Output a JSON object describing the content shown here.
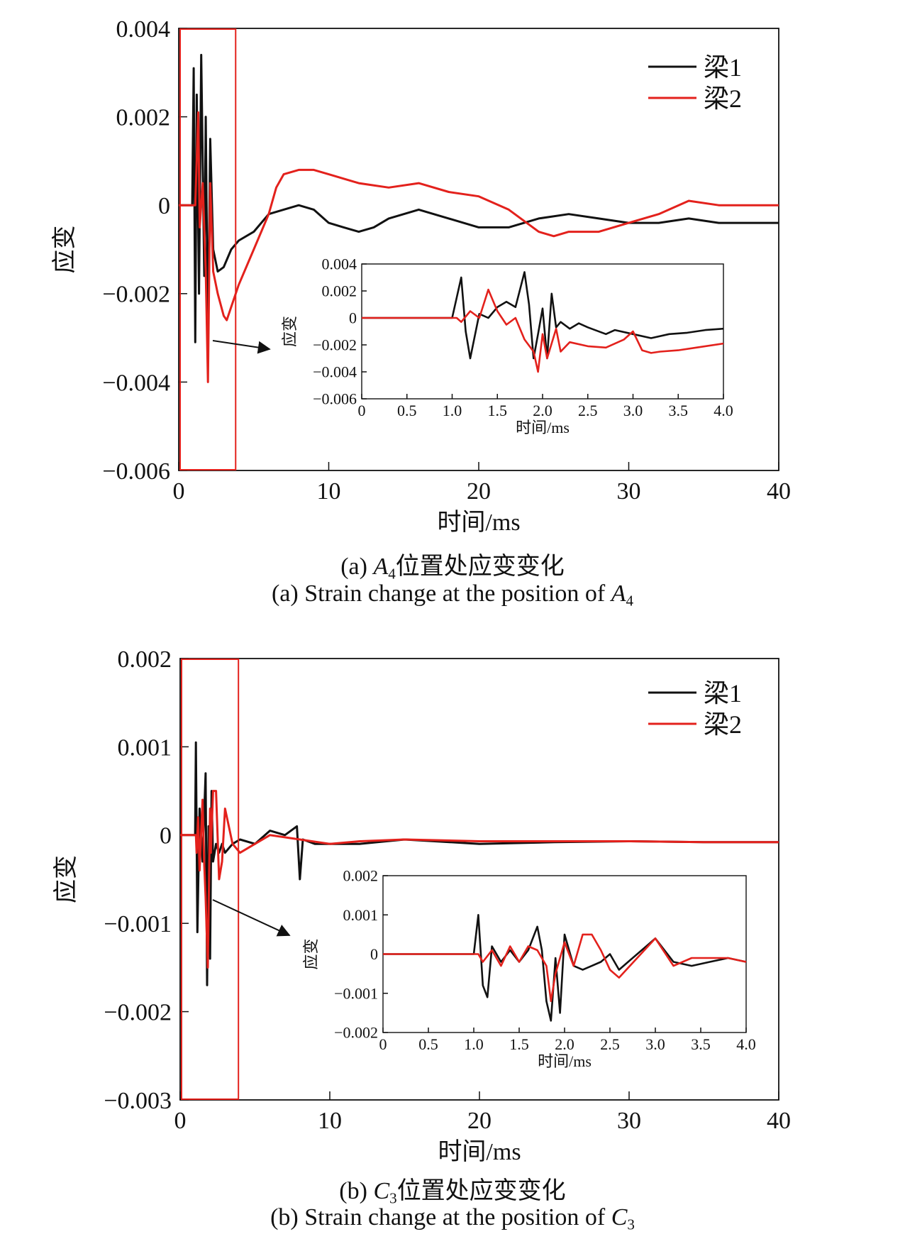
{
  "colors": {
    "beam1": "#111111",
    "beam2": "#e3211c",
    "highlight_box": "#e3211c",
    "arrow": "#111111"
  },
  "panels": [
    {
      "caption_cn": {
        "prefix": "(a) ",
        "var": "A",
        "sub": "4",
        "suffix": "位置处应变变化"
      },
      "caption_en": {
        "prefix": "(a) Strain change at the position of ",
        "var": "A",
        "sub": "4"
      }
    },
    {
      "caption_cn": {
        "prefix": "(b) ",
        "var": "C",
        "sub": "3",
        "suffix": "位置处应变变化"
      },
      "caption_en": {
        "prefix": "(b) Strain change at the position of ",
        "var": "C",
        "sub": "3"
      }
    }
  ],
  "chart_data": [
    {
      "type": "line",
      "panel": "a",
      "title": "",
      "xlabel": "时间/ms",
      "ylabel": "应变",
      "xlim": [
        0,
        40
      ],
      "ylim": [
        -0.006,
        0.004
      ],
      "xticks": [
        "0",
        "10",
        "20",
        "30",
        "40"
      ],
      "yticks": [
        "0.004",
        "0.002",
        "0",
        "−0.002",
        "−0.004",
        "−0.006"
      ],
      "legend": "top-right",
      "highlight_region": {
        "x": [
          0,
          3.7
        ],
        "y": [
          -0.006,
          0.004
        ]
      },
      "series": [
        {
          "name": "梁1",
          "x": [
            0,
            0.9,
            1.0,
            1.1,
            1.2,
            1.35,
            1.5,
            1.7,
            1.8,
            1.95,
            2.1,
            2.3,
            2.6,
            3.0,
            3.5,
            4,
            5,
            6,
            7,
            8,
            9,
            10,
            11,
            12,
            13,
            14,
            15,
            16,
            18,
            20,
            22,
            24,
            26,
            28,
            30,
            32,
            34,
            36,
            38,
            40
          ],
          "y": [
            0,
            0,
            0.0031,
            -0.0031,
            0.0025,
            -0.002,
            0.0034,
            -0.0016,
            0.002,
            -0.0032,
            0.0015,
            -0.001,
            -0.0015,
            -0.0014,
            -0.001,
            -0.0008,
            -0.0006,
            -0.0002,
            -0.0001,
            0,
            -0.0001,
            -0.0004,
            -0.0005,
            -0.0006,
            -0.0005,
            -0.0003,
            -0.0002,
            -0.0001,
            -0.0003,
            -0.0005,
            -0.0005,
            -0.0003,
            -0.0002,
            -0.0003,
            -0.0004,
            -0.0004,
            -0.0003,
            -0.0004,
            -0.0004,
            -0.0004
          ]
        },
        {
          "name": "梁2",
          "x": [
            0,
            1.0,
            1.1,
            1.3,
            1.4,
            1.6,
            1.8,
            1.95,
            2.1,
            2.3,
            2.6,
            3.0,
            3.2,
            3.5,
            4,
            5,
            6,
            6.5,
            7,
            8,
            9,
            10,
            12,
            14,
            16,
            18,
            20,
            22,
            24,
            25,
            26,
            28,
            30,
            32,
            34,
            36,
            38,
            40
          ],
          "y": [
            0,
            0,
            0,
            0.0021,
            -0.0005,
            0.0005,
            -0.0015,
            -0.004,
            0.0005,
            -0.0015,
            -0.002,
            -0.0025,
            -0.0026,
            -0.0023,
            -0.0018,
            -0.001,
            -0.0002,
            0.0004,
            0.0007,
            0.0008,
            0.0008,
            0.0007,
            0.0005,
            0.0004,
            0.0005,
            0.0003,
            0.0002,
            -0.0001,
            -0.0006,
            -0.0007,
            -0.0006,
            -0.0006,
            -0.0004,
            -0.0002,
            0.0001,
            0,
            0,
            0
          ]
        }
      ],
      "inset": {
        "xlabel": "时间/ms",
        "ylabel": "应变",
        "xlim": [
          0,
          4.0
        ],
        "ylim": [
          -0.006,
          0.004
        ],
        "xticks": [
          "0",
          "0.5",
          "1.0",
          "1.5",
          "2.0",
          "2.5",
          "3.0",
          "3.5",
          "4.0"
        ],
        "yticks": [
          "0.004",
          "0.002",
          "0",
          "−0.002",
          "−0.004",
          "−0.006"
        ],
        "series": [
          {
            "name": "梁1",
            "x": [
              0,
              1.0,
              1.05,
              1.1,
              1.15,
              1.2,
              1.3,
              1.4,
              1.5,
              1.6,
              1.7,
              1.8,
              1.85,
              1.9,
              1.95,
              2.0,
              2.05,
              2.1,
              2.15,
              2.2,
              2.3,
              2.4,
              2.5,
              2.7,
              2.8,
              3.0,
              3.2,
              3.4,
              3.6,
              3.8,
              4.0
            ],
            "y": [
              0,
              0,
              0.0015,
              0.003,
              -0.001,
              -0.003,
              0.0003,
              0.0,
              0.0008,
              0.0012,
              0.0008,
              0.0034,
              0.001,
              -0.003,
              -0.0012,
              0.0007,
              -0.003,
              0.0018,
              -0.0007,
              -0.0003,
              -0.0008,
              -0.0004,
              -0.0007,
              -0.0012,
              -0.0009,
              -0.0012,
              -0.0015,
              -0.0012,
              -0.0011,
              -0.0009,
              -0.0008
            ]
          },
          {
            "name": "梁2",
            "x": [
              0,
              1.05,
              1.1,
              1.2,
              1.3,
              1.4,
              1.5,
              1.6,
              1.7,
              1.8,
              1.9,
              1.95,
              2.0,
              2.05,
              2.15,
              2.2,
              2.3,
              2.5,
              2.7,
              2.9,
              3.0,
              3.1,
              3.2,
              3.3,
              3.5,
              3.7,
              4.0
            ],
            "y": [
              0,
              0,
              -0.0003,
              0.0005,
              0.0,
              0.0021,
              0.0005,
              -0.0005,
              0.0,
              -0.0016,
              -0.0025,
              -0.004,
              -0.0012,
              -0.003,
              -0.0008,
              -0.0025,
              -0.0018,
              -0.0021,
              -0.0022,
              -0.0016,
              -0.001,
              -0.0024,
              -0.0026,
              -0.0025,
              -0.0024,
              -0.0022,
              -0.0019
            ]
          }
        ]
      }
    },
    {
      "type": "line",
      "panel": "b",
      "title": "",
      "xlabel": "时间/ms",
      "ylabel": "应变",
      "xlim": [
        0,
        40
      ],
      "ylim": [
        -0.003,
        0.002
      ],
      "xticks": [
        "0",
        "10",
        "20",
        "30",
        "40"
      ],
      "yticks": [
        "0.002",
        "0.001",
        "0",
        "−0.001",
        "−0.002",
        "−0.003"
      ],
      "legend": "top-right",
      "highlight_region": {
        "x": [
          0,
          3.8
        ],
        "y": [
          -0.003,
          0.002
        ]
      },
      "series": [
        {
          "name": "梁1",
          "x": [
            0,
            1.0,
            1.05,
            1.15,
            1.3,
            1.5,
            1.7,
            1.8,
            1.9,
            2.0,
            2.1,
            2.2,
            2.4,
            2.6,
            2.8,
            3.0,
            3.5,
            4,
            5,
            6,
            7,
            7.8,
            8.0,
            8.2,
            9,
            10,
            12,
            15,
            20,
            25,
            30,
            35,
            40
          ],
          "y": [
            0,
            0,
            0.00105,
            -0.0011,
            0.0003,
            -0.0003,
            0.0007,
            -0.0017,
            0.0001,
            -0.0014,
            0.0005,
            -0.0003,
            -0.0001,
            -0.0002,
            -0.0001,
            -0.0002,
            -0.0001,
            -5e-05,
            -0.0001,
            5e-05,
            0,
            0.0001,
            -0.0005,
            -5e-05,
            -0.0001,
            -0.0001,
            -0.0001,
            -5e-05,
            -0.0001,
            -8e-05,
            -7e-05,
            -8e-05,
            -8e-05
          ]
        },
        {
          "name": "梁2",
          "x": [
            0,
            1.05,
            1.1,
            1.2,
            1.3,
            1.5,
            1.6,
            1.7,
            1.85,
            1.95,
            2.0,
            2.05,
            2.2,
            2.4,
            2.6,
            2.8,
            3.0,
            3.5,
            4,
            5,
            6,
            8,
            10,
            12,
            15,
            20,
            25,
            30,
            35,
            40
          ],
          "y": [
            0,
            0,
            -0.0002,
            0.0002,
            -0.0004,
            0.0004,
            -0.0003,
            -0.0007,
            -0.0015,
            -0.0003,
            0.0003,
            -0.0002,
            0.0005,
            0.0005,
            -0.0005,
            -0.0003,
            0.0003,
            -0.0001,
            -0.0002,
            -0.0001,
            0,
            -5e-05,
            -0.0001,
            -7e-05,
            -5e-05,
            -7e-05,
            -7e-05,
            -7e-05,
            -8e-05,
            -8e-05
          ]
        }
      ],
      "inset": {
        "xlabel": "时间/ms",
        "ylabel": "应变",
        "xlim": [
          0,
          4.0
        ],
        "ylim": [
          -0.002,
          0.002
        ],
        "xticks": [
          "0",
          "0.5",
          "1.0",
          "1.5",
          "2.0",
          "2.5",
          "3.0",
          "3.5",
          "4.0"
        ],
        "yticks": [
          "0.002",
          "0.001",
          "0",
          "−0.001",
          "−0.002"
        ],
        "series": [
          {
            "name": "梁1",
            "x": [
              0,
              1.0,
              1.05,
              1.1,
              1.15,
              1.2,
              1.3,
              1.4,
              1.5,
              1.6,
              1.7,
              1.75,
              1.8,
              1.85,
              1.9,
              1.95,
              2.0,
              2.1,
              2.2,
              2.3,
              2.4,
              2.5,
              2.6,
              2.7,
              2.8,
              2.9,
              3.0,
              3.2,
              3.4,
              3.6,
              3.8,
              4.0
            ],
            "y": [
              0,
              0,
              0.001,
              -0.0008,
              -0.0011,
              0.0002,
              -0.0002,
              0.0001,
              -0.0002,
              0.0001,
              0.0007,
              0.0001,
              -0.0012,
              -0.0017,
              -0.0001,
              -0.0015,
              0.0005,
              -0.0003,
              -0.0004,
              -0.0003,
              -0.0002,
              0.0,
              -0.0004,
              -0.0002,
              0.0,
              0.0002,
              0.0004,
              -0.0002,
              -0.0003,
              -0.0002,
              -0.0001,
              -0.0002
            ]
          },
          {
            "name": "梁2",
            "x": [
              0,
              1.05,
              1.1,
              1.2,
              1.3,
              1.4,
              1.5,
              1.6,
              1.7,
              1.8,
              1.85,
              1.9,
              2.0,
              2.1,
              2.2,
              2.3,
              2.4,
              2.5,
              2.6,
              2.8,
              3.0,
              3.2,
              3.4,
              3.6,
              3.8,
              4.0
            ],
            "y": [
              0,
              0,
              -0.0002,
              0.0001,
              -0.0003,
              0.0002,
              -0.0002,
              0.0002,
              0.0001,
              -0.0003,
              -0.0012,
              -0.0005,
              0.0003,
              -0.0003,
              0.0005,
              0.0005,
              0.0001,
              -0.0004,
              -0.0006,
              -0.0001,
              0.0004,
              -0.0003,
              -0.0001,
              -0.0001,
              -0.0001,
              -0.0002
            ]
          }
        ]
      }
    }
  ]
}
